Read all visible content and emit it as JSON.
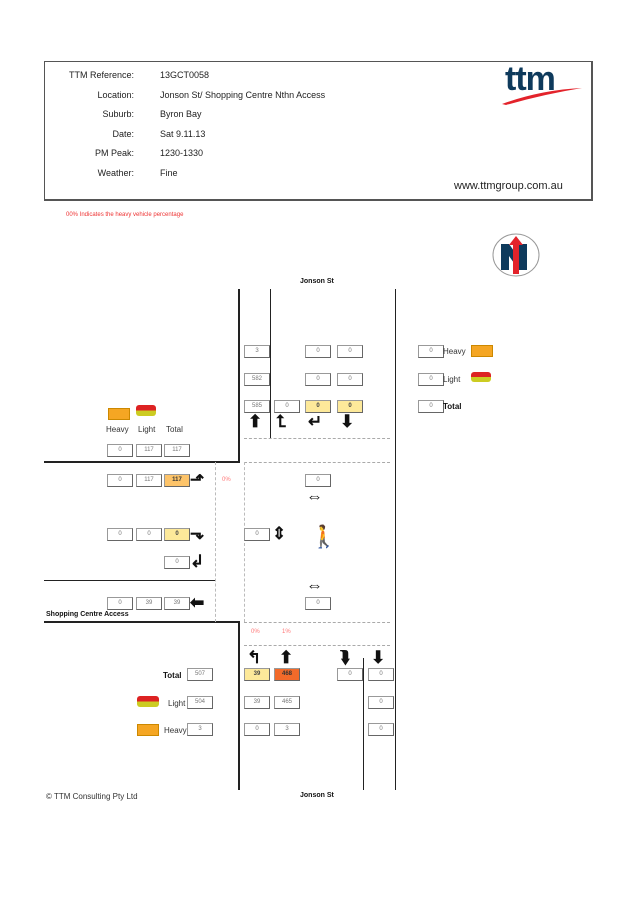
{
  "header": {
    "fields": [
      {
        "label": "TTM Reference:",
        "value": "13GCT0058"
      },
      {
        "label": "Location:",
        "value": "Jonson St/ Shopping Centre Nthn Access"
      },
      {
        "label": "Suburb:",
        "value": "Byron Bay"
      },
      {
        "label": "Date:",
        "value": "Sat 9.11.13"
      },
      {
        "label": "PM Peak:",
        "value": "1230-1330"
      },
      {
        "label": "Weather:",
        "value": "Fine"
      }
    ],
    "logo_text": "ttm",
    "website": "www.ttmgroup.com.au"
  },
  "note": "00% Indicates the heavy vehicle percentage",
  "colors": {
    "yellow": "#fde99a",
    "orange": "#fdc46a",
    "red_orange": "#f26a2a",
    "brand_blue": "#0e3a5c",
    "brand_red": "#e3232b"
  },
  "roads": {
    "north": "Jonson St",
    "south": "Jonson St",
    "west": "Shopping Centre Access"
  },
  "legend": {
    "heavy": "Heavy",
    "light": "Light",
    "total": "Total",
    "heavy_value": "0",
    "light_value": "0",
    "total_value": "0"
  },
  "north": {
    "col_through": {
      "heavy": "3",
      "light": "582",
      "total": "585"
    },
    "u_turn": "0",
    "right": {
      "heavy": "0",
      "light": "0",
      "total": "0"
    },
    "south_bound": {
      "heavy": "0",
      "light": "0",
      "total": "0"
    }
  },
  "west": {
    "labels": {
      "heavy": "Heavy",
      "light": "Light",
      "total": "Total"
    },
    "approach": {
      "heavy": "0",
      "light": "117",
      "total": "117"
    },
    "left": {
      "heavy": "0",
      "light": "117",
      "total": "117"
    },
    "left_pct": "0%",
    "right": {
      "heavy": "0",
      "light": "0",
      "total": "0"
    },
    "u_turn": "0",
    "exit": {
      "heavy": "0",
      "light": "39",
      "total": "39"
    }
  },
  "pedestrians": {
    "north_crossing": "0",
    "west_crossing": "0",
    "south_crossing": "0"
  },
  "south": {
    "labels": {
      "total": "Total",
      "light": "Light",
      "heavy": "Heavy"
    },
    "approach": {
      "total": "507",
      "light": "504",
      "heavy": "3"
    },
    "left": {
      "total": "39",
      "light": "39",
      "heavy": "0"
    },
    "left_pct": "0%",
    "through": {
      "total": "468",
      "light": "465",
      "heavy": "3"
    },
    "through_pct": "1%",
    "u_turn": "0",
    "north_bound": {
      "total": "0",
      "light": "0",
      "heavy": "0"
    }
  },
  "footer": {
    "copyright": "© TTM Consulting Pty Ltd"
  }
}
